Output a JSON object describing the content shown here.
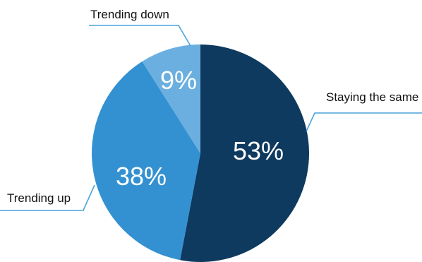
{
  "chart_data": {
    "type": "pie",
    "title": "",
    "slices": [
      {
        "label": "Staying the same",
        "value": 53,
        "display": "53%",
        "color": "#0f3a5f"
      },
      {
        "label": "Trending up",
        "value": 38,
        "display": "38%",
        "color": "#3491d1"
      },
      {
        "label": "Trending down",
        "value": 9,
        "display": "9%",
        "color": "#6aafe0"
      }
    ],
    "start_angle_deg": 0,
    "direction": "clockwise",
    "leader_color": "#4aa3d8"
  }
}
